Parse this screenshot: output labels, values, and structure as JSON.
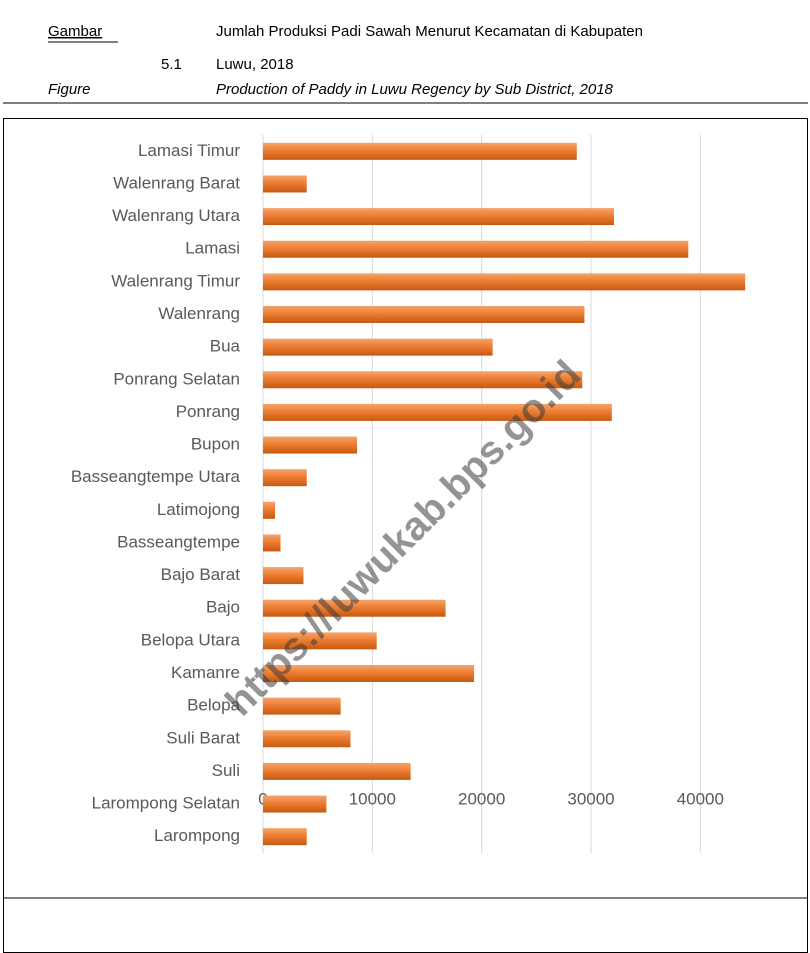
{
  "header": {
    "label_id": "Gambar",
    "number": "5.1",
    "title_id": "Jumlah Produksi Padi Sawah Menurut Kecamatan di Kabupaten Luwu, 2018",
    "label_en": "Figure",
    "title_en": "Production of Paddy in Luwu Regency by Sub District, 2018"
  },
  "watermark": "https://luwukab.bps.go.id",
  "chart_data": {
    "type": "barh",
    "categories": [
      "Lamasi Timur",
      "Walenrang Barat",
      "Walenrang Utara",
      "Lamasi",
      "Walenrang Timur",
      "Walenrang",
      "Bua",
      "Ponrang Selatan",
      "Ponrang",
      "Bupon",
      "Basseangtempe Utara",
      "Latimojong",
      "Basseangtempe",
      "Bajo Barat",
      "Bajo",
      "Belopa Utara",
      "Kamanre",
      "Belopa",
      "Suli Barat",
      "Suli",
      "Larompong Selatan",
      "Larompong"
    ],
    "values": [
      28700,
      4000,
      32100,
      38900,
      44100,
      29400,
      21000,
      29200,
      31900,
      8600,
      4000,
      1100,
      1600,
      3700,
      16700,
      10400,
      19300,
      7100,
      8000,
      13500,
      5800,
      4000
    ],
    "color": "#ed7d31",
    "xlim": [
      0,
      45000
    ],
    "xticks": [
      0,
      10000,
      20000,
      30000,
      40000
    ],
    "grid": true
  }
}
